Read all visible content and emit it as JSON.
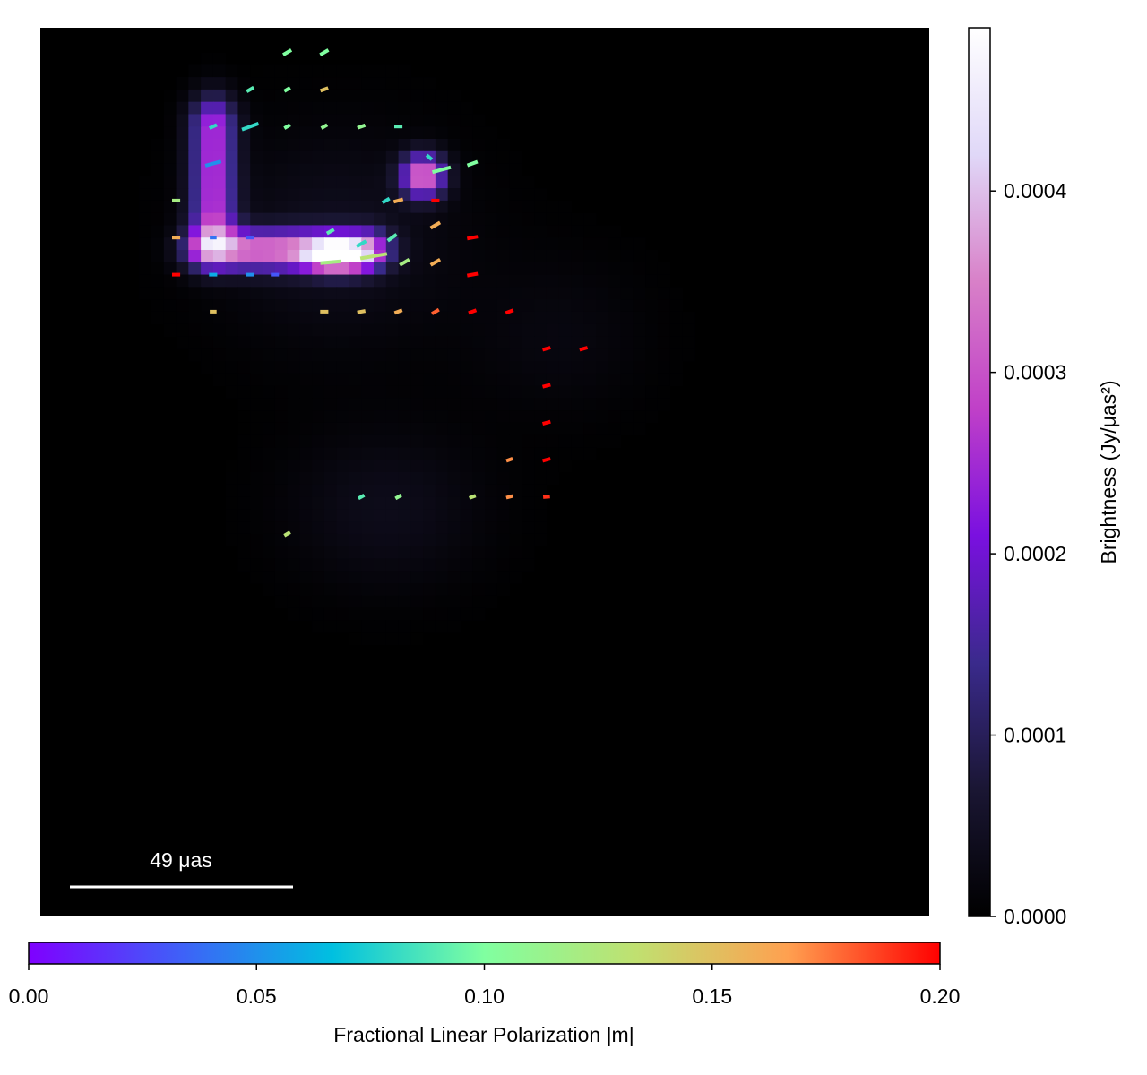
{
  "chart_data": {
    "type": "heatmap",
    "image": {
      "background": "#000000",
      "note_components": [
        {
          "shape": "arc",
          "peak": 0.00048
        },
        {
          "shape": "knot",
          "peak": 0.00038
        },
        {
          "shape": "diffuse",
          "peak": 6e-05
        }
      ]
    },
    "scalebar": {
      "label": "49 μas",
      "color": "#ffffff"
    },
    "brightness_colorbar": {
      "label": "Brightness (Jy/μas²)",
      "range": [
        0.0,
        0.00049
      ],
      "ticks": [
        {
          "value": 0.0,
          "label": "0.0000"
        },
        {
          "value": 0.0001,
          "label": "0.0001"
        },
        {
          "value": 0.0002,
          "label": "0.0002"
        },
        {
          "value": 0.0003,
          "label": "0.0003"
        },
        {
          "value": 0.0004,
          "label": "0.0004"
        }
      ],
      "colors": [
        "#000000",
        "#1a1633",
        "#3a2a8c",
        "#7a10e0",
        "#c040c8",
        "#d880c8",
        "#e0d8f8",
        "#ffffff"
      ]
    },
    "polarization_colorbar": {
      "label": "Fractional Linear Polarization |m|",
      "range": [
        0.0,
        0.2
      ],
      "ticks": [
        {
          "value": 0.0,
          "label": "0.00"
        },
        {
          "value": 0.05,
          "label": "0.05"
        },
        {
          "value": 0.1,
          "label": "0.10"
        },
        {
          "value": 0.15,
          "label": "0.15"
        },
        {
          "value": 0.2,
          "label": "0.20"
        }
      ],
      "colors": [
        "#7f00ff",
        "#3f60f8",
        "#00c0e0",
        "#80ffa0",
        "#c0e070",
        "#ffa050",
        "#ff0000"
      ]
    },
    "polarization_ticks": [
      {
        "x": 10.0,
        "y": 25.0,
        "angle": 30,
        "m": 0.1,
        "len": 0.7
      },
      {
        "x": 13.0,
        "y": 25.0,
        "angle": 30,
        "m": 0.1,
        "len": 0.7
      },
      {
        "x": 7.0,
        "y": 22.0,
        "angle": 30,
        "m": 0.09,
        "len": 0.6
      },
      {
        "x": 10.0,
        "y": 22.0,
        "angle": 30,
        "m": 0.1,
        "len": 0.5
      },
      {
        "x": 13.0,
        "y": 22.0,
        "angle": 20,
        "m": 0.15,
        "len": 0.6
      },
      {
        "x": 4.0,
        "y": 19.0,
        "angle": 25,
        "m": 0.08,
        "len": 0.6
      },
      {
        "x": 7.0,
        "y": 19.0,
        "angle": 20,
        "m": 0.08,
        "len": 1.3
      },
      {
        "x": 10.0,
        "y": 19.0,
        "angle": 30,
        "m": 0.1,
        "len": 0.5
      },
      {
        "x": 13.0,
        "y": 19.0,
        "angle": 30,
        "m": 0.11,
        "len": 0.5
      },
      {
        "x": 16.0,
        "y": 19.0,
        "angle": 20,
        "m": 0.11,
        "len": 0.6
      },
      {
        "x": 19.0,
        "y": 19.0,
        "angle": 0,
        "m": 0.09,
        "len": 0.6
      },
      {
        "x": 4.0,
        "y": 16.0,
        "angle": 15,
        "m": 0.05,
        "len": 1.2
      },
      {
        "x": 21.5,
        "y": 16.5,
        "angle": -40,
        "m": 0.08,
        "len": 0.5
      },
      {
        "x": 22.5,
        "y": 15.5,
        "angle": 15,
        "m": 0.1,
        "len": 1.4
      },
      {
        "x": 25.0,
        "y": 16.0,
        "angle": 20,
        "m": 0.1,
        "len": 0.8
      },
      {
        "x": 18.0,
        "y": 13.0,
        "angle": 30,
        "m": 0.08,
        "len": 0.6
      },
      {
        "x": 19.0,
        "y": 13.0,
        "angle": 15,
        "m": 0.16,
        "len": 0.7
      },
      {
        "x": 22.0,
        "y": 13.0,
        "angle": 0,
        "m": 0.2,
        "len": 0.6
      },
      {
        "x": 1.0,
        "y": 13.0,
        "angle": 0,
        "m": 0.12,
        "len": 0.6
      },
      {
        "x": 1.0,
        "y": 10.0,
        "angle": 0,
        "m": 0.16,
        "len": 0.6
      },
      {
        "x": 1.0,
        "y": 7.0,
        "angle": 0,
        "m": 0.2,
        "len": 0.6
      },
      {
        "x": 4.0,
        "y": 10.0,
        "angle": 0,
        "m": 0.04,
        "len": 0.5
      },
      {
        "x": 7.0,
        "y": 10.0,
        "angle": 0,
        "m": 0.03,
        "len": 0.6
      },
      {
        "x": 4.0,
        "y": 7.0,
        "angle": 0,
        "m": 0.06,
        "len": 0.6
      },
      {
        "x": 7.0,
        "y": 7.0,
        "angle": 0,
        "m": 0.05,
        "len": 0.6
      },
      {
        "x": 9.0,
        "y": 7.0,
        "angle": 0,
        "m": 0.03,
        "len": 0.6
      },
      {
        "x": 13.5,
        "y": 10.5,
        "angle": 30,
        "m": 0.09,
        "len": 0.6
      },
      {
        "x": 16.0,
        "y": 9.5,
        "angle": 30,
        "m": 0.08,
        "len": 0.8
      },
      {
        "x": 18.5,
        "y": 10.0,
        "angle": 35,
        "m": 0.09,
        "len": 0.8
      },
      {
        "x": 13.5,
        "y": 8.0,
        "angle": 5,
        "m": 0.12,
        "len": 1.5
      },
      {
        "x": 17.0,
        "y": 8.5,
        "angle": 10,
        "m": 0.13,
        "len": 2.0
      },
      {
        "x": 19.5,
        "y": 8.0,
        "angle": 30,
        "m": 0.12,
        "len": 0.8
      },
      {
        "x": 22.0,
        "y": 11.0,
        "angle": 30,
        "m": 0.16,
        "len": 0.8
      },
      {
        "x": 22.0,
        "y": 8.0,
        "angle": 30,
        "m": 0.16,
        "len": 0.8
      },
      {
        "x": 25.0,
        "y": 10.0,
        "angle": 10,
        "m": 0.2,
        "len": 0.8
      },
      {
        "x": 25.0,
        "y": 7.0,
        "angle": 10,
        "m": 0.2,
        "len": 0.8
      },
      {
        "x": 4.0,
        "y": 4.0,
        "angle": 0,
        "m": 0.15,
        "len": 0.5
      },
      {
        "x": 13.0,
        "y": 4.0,
        "angle": 0,
        "m": 0.15,
        "len": 0.6
      },
      {
        "x": 16.0,
        "y": 4.0,
        "angle": 10,
        "m": 0.15,
        "len": 0.6
      },
      {
        "x": 19.0,
        "y": 4.0,
        "angle": 20,
        "m": 0.16,
        "len": 0.6
      },
      {
        "x": 22.0,
        "y": 4.0,
        "angle": 30,
        "m": 0.18,
        "len": 0.6
      },
      {
        "x": 25.0,
        "y": 4.0,
        "angle": 20,
        "m": 0.2,
        "len": 0.6
      },
      {
        "x": 28.0,
        "y": 4.0,
        "angle": 20,
        "m": 0.2,
        "len": 0.6
      },
      {
        "x": 31.0,
        "y": 1.0,
        "angle": 15,
        "m": 0.2,
        "len": 0.6
      },
      {
        "x": 34.0,
        "y": 1.0,
        "angle": 15,
        "m": 0.2,
        "len": 0.6
      },
      {
        "x": 31.0,
        "y": -2.0,
        "angle": 15,
        "m": 0.2,
        "len": 0.6
      },
      {
        "x": 31.0,
        "y": -5.0,
        "angle": 15,
        "m": 0.2,
        "len": 0.6
      },
      {
        "x": 28.0,
        "y": -8.0,
        "angle": 20,
        "m": 0.17,
        "len": 0.5
      },
      {
        "x": 31.0,
        "y": -8.0,
        "angle": 15,
        "m": 0.2,
        "len": 0.6
      },
      {
        "x": 16.0,
        "y": -11.0,
        "angle": 30,
        "m": 0.09,
        "len": 0.5
      },
      {
        "x": 19.0,
        "y": -11.0,
        "angle": 30,
        "m": 0.11,
        "len": 0.5
      },
      {
        "x": 25.0,
        "y": -11.0,
        "angle": 20,
        "m": 0.13,
        "len": 0.5
      },
      {
        "x": 28.0,
        "y": -11.0,
        "angle": 15,
        "m": 0.17,
        "len": 0.5
      },
      {
        "x": 31.0,
        "y": -11.0,
        "angle": 5,
        "m": 0.19,
        "len": 0.5
      },
      {
        "x": 10.0,
        "y": -14.0,
        "angle": 30,
        "m": 0.13,
        "len": 0.5
      }
    ]
  }
}
